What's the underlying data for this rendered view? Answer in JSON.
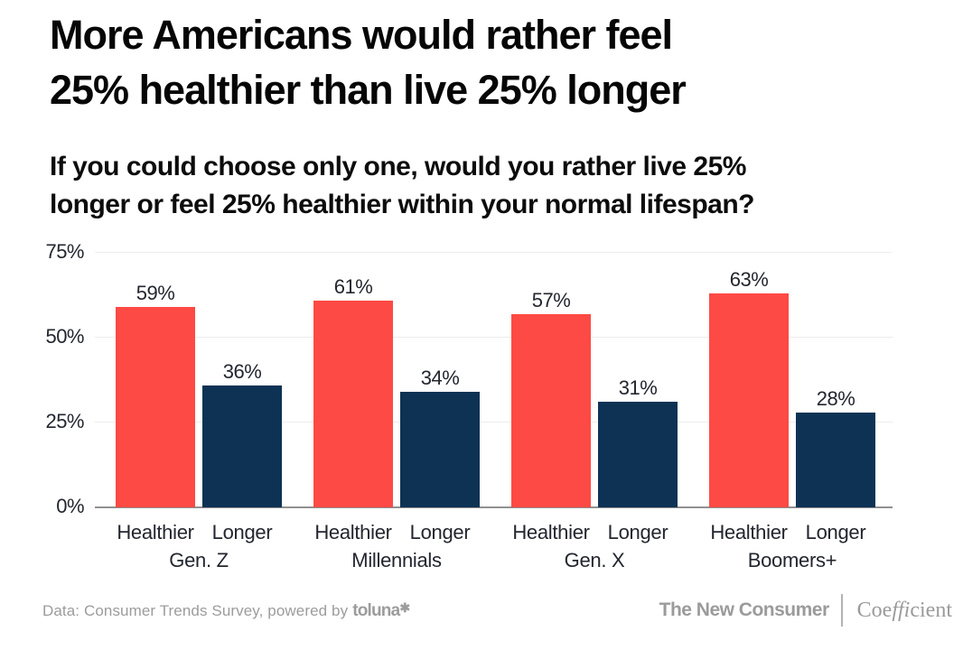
{
  "header": {
    "title_lines": [
      "More Americans would rather feel",
      "25% healthier than live 25% longer"
    ],
    "subtitle_lines": [
      "If you could choose only one, would you rather live 25%",
      "longer or feel 25% healthier within your normal lifespan?"
    ]
  },
  "chart_data": {
    "type": "bar",
    "title": "More Americans would rather feel 25% healthier than live 25% longer",
    "subtitle": "If you could choose only one, would you rather live 25% longer or feel 25% healthier within your normal lifespan?",
    "categories": [
      "Gen. Z",
      "Millennials",
      "Gen. X",
      "Boomers+"
    ],
    "series": [
      {
        "name": "Healthier",
        "color": "#FD4A44",
        "values": [
          59,
          61,
          57,
          63
        ]
      },
      {
        "name": "Longer",
        "color": "#0D3254",
        "values": [
          36,
          34,
          31,
          28
        ]
      }
    ],
    "value_suffix": "%",
    "bar_labels": true,
    "y_ticks": [
      {
        "label": "75%",
        "value": 75
      },
      {
        "label": "50%",
        "value": 50
      },
      {
        "label": "25%",
        "value": 25
      },
      {
        "label": "0%",
        "value": 0
      }
    ],
    "ylim": [
      0,
      75
    ],
    "grid": true,
    "legend_position": "none"
  },
  "footer": {
    "source_text": "Data: Consumer Trends Survey, powered by",
    "source_logo": "toluna",
    "source_logo_symbol": "✱",
    "brand_primary": "The New Consumer",
    "brand_secondary_pre": "Coe",
    "brand_secondary_mid": "ffi",
    "brand_secondary_post": "cient"
  },
  "colors": {
    "healthier_bar": "#FD4A44",
    "longer_bar": "#0D3254",
    "gridline": "#EDEDED",
    "axis_line": "#919191",
    "chart_text": "#23262F",
    "footer_gray": "#9C9C9C",
    "background": "#FFFFFF"
  }
}
